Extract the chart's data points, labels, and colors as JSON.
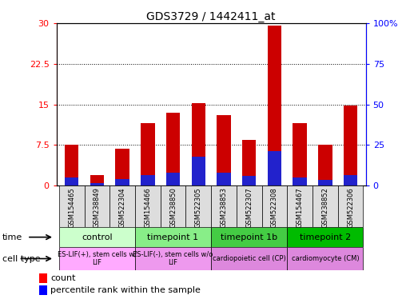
{
  "title": "GDS3729 / 1442411_at",
  "samples": [
    "GSM154465",
    "GSM238849",
    "GSM522304",
    "GSM154466",
    "GSM238850",
    "GSM522305",
    "GSM238853",
    "GSM522307",
    "GSM522308",
    "GSM154467",
    "GSM238852",
    "GSM522306"
  ],
  "count_values": [
    7.5,
    2.0,
    6.8,
    11.5,
    13.5,
    15.2,
    13.0,
    8.5,
    29.5,
    11.5,
    7.5,
    14.8
  ],
  "percentile_values": [
    5.0,
    1.5,
    4.0,
    6.5,
    8.0,
    18.0,
    8.0,
    6.0,
    21.5,
    5.0,
    3.5,
    6.5
  ],
  "left_ylim": [
    0,
    30
  ],
  "right_ylim": [
    0,
    100
  ],
  "left_yticks": [
    0,
    7.5,
    15,
    22.5,
    30
  ],
  "right_yticks": [
    0,
    25,
    50,
    75,
    100
  ],
  "left_yticklabels": [
    "0",
    "7.5",
    "15",
    "22.5",
    "30"
  ],
  "right_yticklabels": [
    "0",
    "25",
    "50",
    "75",
    "100%"
  ],
  "bar_color": "#cc0000",
  "percentile_color": "#2222cc",
  "bar_width": 0.55,
  "time_groups": [
    {
      "label": "control",
      "start": 0,
      "end": 2,
      "color": "#ccffcc"
    },
    {
      "label": "timepoint 1",
      "start": 3,
      "end": 5,
      "color": "#88ee88"
    },
    {
      "label": "timepoint 1b",
      "start": 6,
      "end": 8,
      "color": "#44cc44"
    },
    {
      "label": "timepoint 2",
      "start": 9,
      "end": 11,
      "color": "#00bb00"
    }
  ],
  "cell_groups": [
    {
      "label": "ES-LIF(+), stem cells w/\nLIF",
      "start": 0,
      "end": 2,
      "color": "#ffaaff"
    },
    {
      "label": "ES-LIF(-), stem cells w/o\nLIF",
      "start": 3,
      "end": 5,
      "color": "#ee99ee"
    },
    {
      "label": "cardiopoietic cell (CP)",
      "start": 6,
      "end": 8,
      "color": "#dd88dd"
    },
    {
      "label": "cardiomyocyte (CM)",
      "start": 9,
      "end": 11,
      "color": "#dd88dd"
    }
  ],
  "legend_count_label": "count",
  "legend_percentile_label": "percentile rank within the sample",
  "sample_box_color": "#dddddd"
}
